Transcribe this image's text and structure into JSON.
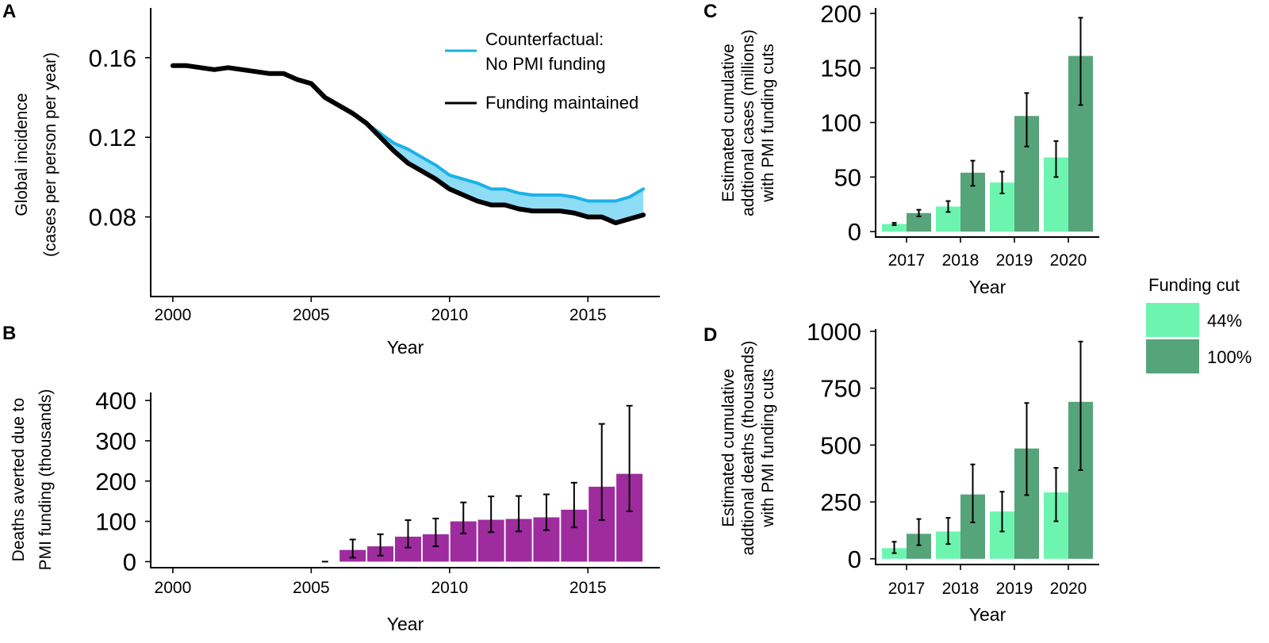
{
  "colors": {
    "counterfactual": "#1ab2e8",
    "ribbon": "#8fdcf5",
    "maintained": "#000000",
    "deaths_bar": "#9e2c9e",
    "cut44": "#6df5b0",
    "cut100": "#56a47a"
  },
  "legend_cut": {
    "title": "Funding cut",
    "items": [
      "44%",
      "100%"
    ]
  },
  "chart_data": [
    {
      "panel": "A",
      "type": "line",
      "xlabel": "Year",
      "ylabel_lines": [
        "Global incidence",
        "(cases per person per year)"
      ],
      "xlim": [
        1999.2,
        2017.6
      ],
      "ylim": [
        0.04,
        0.185
      ],
      "xticks": [
        2000,
        2005,
        2010,
        2015
      ],
      "yticks": [
        0.08,
        0.12,
        0.16
      ],
      "ytick_labels": [
        "0.08",
        "0.12",
        "0.16"
      ],
      "legend": [
        "Counterfactual:",
        "No PMI funding",
        "Funding maintained"
      ],
      "series": [
        {
          "name": "Counterfactual: No PMI funding",
          "x": [
            2007.0,
            2007.5,
            2008.0,
            2008.5,
            2009.0,
            2009.5,
            2010.0,
            2010.5,
            2011.0,
            2011.5,
            2012.0,
            2012.5,
            2013.0,
            2013.5,
            2014.0,
            2014.5,
            2015.0,
            2015.5,
            2016.0,
            2016.5,
            2017.0
          ],
          "values": [
            0.127,
            0.122,
            0.117,
            0.114,
            0.11,
            0.106,
            0.101,
            0.099,
            0.097,
            0.094,
            0.094,
            0.092,
            0.091,
            0.091,
            0.091,
            0.09,
            0.088,
            0.088,
            0.088,
            0.09,
            0.094
          ]
        },
        {
          "name": "Funding maintained",
          "x": [
            2000.0,
            2000.5,
            2001.0,
            2001.5,
            2002.0,
            2002.5,
            2003.0,
            2003.5,
            2004.0,
            2004.5,
            2005.0,
            2005.5,
            2006.0,
            2006.5,
            2007.0,
            2007.5,
            2008.0,
            2008.5,
            2009.0,
            2009.5,
            2010.0,
            2010.5,
            2011.0,
            2011.5,
            2012.0,
            2012.5,
            2013.0,
            2013.5,
            2014.0,
            2014.5,
            2015.0,
            2015.5,
            2016.0,
            2016.5,
            2017.0
          ],
          "values": [
            0.156,
            0.156,
            0.155,
            0.154,
            0.155,
            0.154,
            0.153,
            0.152,
            0.152,
            0.149,
            0.147,
            0.14,
            0.136,
            0.132,
            0.127,
            0.12,
            0.113,
            0.107,
            0.103,
            0.099,
            0.094,
            0.091,
            0.088,
            0.086,
            0.086,
            0.084,
            0.083,
            0.083,
            0.083,
            0.082,
            0.08,
            0.08,
            0.077,
            0.079,
            0.081
          ]
        }
      ]
    },
    {
      "panel": "B",
      "type": "bar",
      "xlabel": "Year",
      "ylabel_lines": [
        "Deaths averted due to",
        "PMI funding (thousands)"
      ],
      "xlim": [
        1999.2,
        2017.6
      ],
      "ylim": [
        -15,
        420
      ],
      "xticks": [
        2000,
        2005,
        2010,
        2015
      ],
      "yticks": [
        0,
        100,
        200,
        300,
        400
      ],
      "x": [
        2005.5,
        2006.5,
        2007.5,
        2008.5,
        2009.5,
        2010.5,
        2011.5,
        2012.5,
        2013.5,
        2014.5,
        2015.5,
        2016.5
      ],
      "values": [
        0,
        29,
        38,
        62,
        68,
        100,
        104,
        106,
        110,
        129,
        186,
        218
      ],
      "lower": [
        0,
        10,
        15,
        35,
        38,
        70,
        73,
        75,
        78,
        85,
        103,
        125
      ],
      "upper": [
        0,
        55,
        68,
        103,
        107,
        147,
        162,
        163,
        167,
        196,
        342,
        387
      ]
    },
    {
      "panel": "C",
      "type": "bar",
      "xlabel": "Year",
      "ylabel_lines": [
        "Estimated cumulative",
        "addtional cases (millions)",
        "with PMI funding cuts"
      ],
      "categories": [
        "2017",
        "2018",
        "2019",
        "2020"
      ],
      "ylim": [
        -5,
        205
      ],
      "yticks": [
        0,
        50,
        100,
        150,
        200
      ],
      "series": [
        {
          "name": "44%",
          "values": [
            7,
            23,
            45,
            68
          ],
          "lower": [
            6,
            18,
            35,
            50
          ],
          "upper": [
            8,
            28,
            55,
            83
          ]
        },
        {
          "name": "100%",
          "values": [
            17,
            54,
            106,
            161
          ],
          "lower": [
            14,
            42,
            78,
            116
          ],
          "upper": [
            20,
            65,
            127,
            196
          ]
        }
      ]
    },
    {
      "panel": "D",
      "type": "bar",
      "xlabel": "Year",
      "ylabel_lines": [
        "Estimated cumulative",
        "addtional deaths (thousands)",
        "with PMI funding cuts"
      ],
      "categories": [
        "2017",
        "2018",
        "2019",
        "2020"
      ],
      "ylim": [
        -25,
        1010
      ],
      "yticks": [
        0,
        250,
        500,
        750,
        1000
      ],
      "series": [
        {
          "name": "44%",
          "values": [
            47,
            120,
            208,
            292
          ],
          "lower": [
            25,
            65,
            120,
            165
          ],
          "upper": [
            75,
            180,
            295,
            400
          ]
        },
        {
          "name": "100%",
          "values": [
            110,
            283,
            485,
            690
          ],
          "lower": [
            60,
            160,
            280,
            390
          ],
          "upper": [
            175,
            415,
            685,
            955
          ]
        }
      ]
    }
  ]
}
